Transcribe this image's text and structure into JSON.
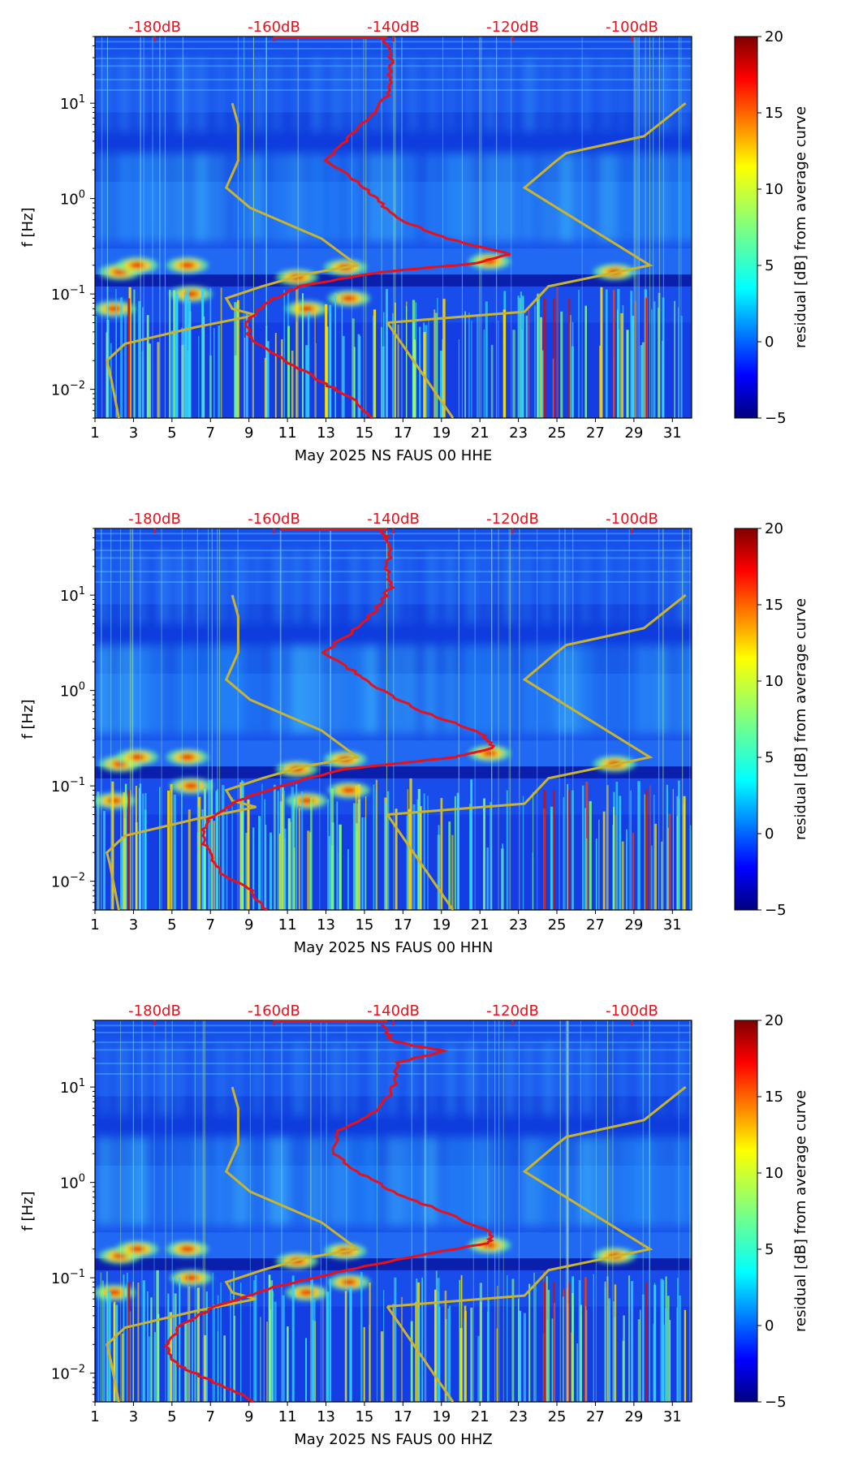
{
  "chart_data": [
    {
      "type": "heatmap",
      "channel": "HHE",
      "xlabel": "May 2025 NS FAUS 00 HHE",
      "ylabel": "f [Hz]",
      "xticks": [
        "1",
        "3",
        "5",
        "7",
        "9",
        "11",
        "13",
        "15",
        "17",
        "19",
        "21",
        "23",
        "25",
        "27",
        "29",
        "31"
      ],
      "xlim": [
        1,
        32
      ],
      "ylim": [
        0.005,
        50
      ],
      "yticks": [
        "10^-2",
        "10^-1",
        "10^0",
        "10^1"
      ],
      "top_axis_ticks": [
        "-180dB",
        "-160dB",
        "-140dB",
        "-120dB",
        "-100dB"
      ],
      "top_axis_range_db": [
        -190,
        -90
      ],
      "colorbar": {
        "label": "residual [dB] from average curve",
        "ticks": [
          "−5",
          "0",
          "5",
          "10",
          "15",
          "20"
        ],
        "range": [
          -5,
          20
        ]
      },
      "red_curve_db_vs_freq": [
        {
          "f": 0.005,
          "db": -143.5
        },
        {
          "f": 0.008,
          "db": -147
        },
        {
          "f": 0.012,
          "db": -152
        },
        {
          "f": 0.02,
          "db": -158
        },
        {
          "f": 0.035,
          "db": -164
        },
        {
          "f": 0.05,
          "db": -164.5
        },
        {
          "f": 0.08,
          "db": -161.5
        },
        {
          "f": 0.12,
          "db": -156
        },
        {
          "f": 0.17,
          "db": -142
        },
        {
          "f": 0.21,
          "db": -126
        },
        {
          "f": 0.26,
          "db": -120.5
        },
        {
          "f": 0.4,
          "db": -132
        },
        {
          "f": 0.6,
          "db": -139
        },
        {
          "f": 1.0,
          "db": -143
        },
        {
          "f": 1.5,
          "db": -146
        },
        {
          "f": 2.5,
          "db": -151
        },
        {
          "f": 4.0,
          "db": -148
        },
        {
          "f": 7.0,
          "db": -144
        },
        {
          "f": 12.0,
          "db": -141
        },
        {
          "f": 20.0,
          "db": -140.5
        },
        {
          "f": 35.0,
          "db": -140.5
        },
        {
          "f": 48.0,
          "db": -142
        }
      ],
      "red_top_segment_db": [
        -160,
        -141
      ],
      "model_curves_db_vs_freq": [
        [
          {
            "f": 0.005,
            "db": -186
          },
          {
            "f": 0.015,
            "db": -187.5
          },
          {
            "f": 0.02,
            "db": -188
          },
          {
            "f": 0.03,
            "db": -185
          },
          {
            "f": 0.045,
            "db": -173
          },
          {
            "f": 0.06,
            "db": -163
          },
          {
            "f": 0.07,
            "db": -167
          },
          {
            "f": 0.09,
            "db": -168
          },
          {
            "f": 0.12,
            "db": -162
          },
          {
            "f": 0.16,
            "db": -155
          },
          {
            "f": 0.2,
            "db": -146
          },
          {
            "f": 0.38,
            "db": -152
          },
          {
            "f": 0.8,
            "db": -164
          },
          {
            "f": 1.3,
            "db": -168
          },
          {
            "f": 2.5,
            "db": -166
          },
          {
            "f": 6.0,
            "db": -166
          },
          {
            "f": 10.0,
            "db": -167
          }
        ],
        [
          {
            "f": 0.05,
            "db": -141
          },
          {
            "f": 0.065,
            "db": -118
          },
          {
            "f": 0.12,
            "db": -114
          },
          {
            "f": 0.2,
            "db": -97
          },
          {
            "f": 1.3,
            "db": -118
          },
          {
            "f": 2.4,
            "db": -113
          },
          {
            "f": 3.0,
            "db": -111
          },
          {
            "f": 4.5,
            "db": -98
          },
          {
            "f": 10.0,
            "db": -91
          }
        ],
        [
          {
            "f": 0.005,
            "db": -130
          },
          {
            "f": 0.05,
            "db": -141
          }
        ]
      ]
    },
    {
      "type": "heatmap",
      "channel": "HHN",
      "xlabel": "May 2025 NS FAUS 00 HHN",
      "ylabel": "f [Hz]",
      "xticks": [
        "1",
        "3",
        "5",
        "7",
        "9",
        "11",
        "13",
        "15",
        "17",
        "19",
        "21",
        "23",
        "25",
        "27",
        "29",
        "31"
      ],
      "xlim": [
        1,
        32
      ],
      "ylim": [
        0.005,
        50
      ],
      "yticks": [
        "10^-2",
        "10^-1",
        "10^0",
        "10^1"
      ],
      "top_axis_ticks": [
        "-180dB",
        "-160dB",
        "-140dB",
        "-120dB",
        "-100dB"
      ],
      "top_axis_range_db": [
        -190,
        -90
      ],
      "colorbar": {
        "label": "residual [dB] from average curve",
        "ticks": [
          "−5",
          "0",
          "5",
          "10",
          "15",
          "20"
        ],
        "range": [
          -5,
          20
        ]
      },
      "red_curve_db_vs_freq": [
        {
          "f": 0.005,
          "db": -161.5
        },
        {
          "f": 0.008,
          "db": -164
        },
        {
          "f": 0.012,
          "db": -168.5
        },
        {
          "f": 0.02,
          "db": -171
        },
        {
          "f": 0.03,
          "db": -172
        },
        {
          "f": 0.045,
          "db": -171
        },
        {
          "f": 0.07,
          "db": -166
        },
        {
          "f": 0.1,
          "db": -159
        },
        {
          "f": 0.15,
          "db": -148
        },
        {
          "f": 0.2,
          "db": -130
        },
        {
          "f": 0.25,
          "db": -123
        },
        {
          "f": 0.35,
          "db": -125
        },
        {
          "f": 0.6,
          "db": -135
        },
        {
          "f": 1.0,
          "db": -142
        },
        {
          "f": 1.5,
          "db": -146
        },
        {
          "f": 2.5,
          "db": -152
        },
        {
          "f": 4.0,
          "db": -147
        },
        {
          "f": 7.0,
          "db": -143
        },
        {
          "f": 12.0,
          "db": -140.5
        },
        {
          "f": 20.0,
          "db": -141
        },
        {
          "f": 35.0,
          "db": -140.5
        },
        {
          "f": 48.0,
          "db": -142
        }
      ],
      "red_top_segment_db": [
        -159,
        -141
      ],
      "model_curves_db_vs_freq": [
        [
          {
            "f": 0.005,
            "db": -186
          },
          {
            "f": 0.015,
            "db": -187.5
          },
          {
            "f": 0.02,
            "db": -188
          },
          {
            "f": 0.03,
            "db": -185
          },
          {
            "f": 0.045,
            "db": -173
          },
          {
            "f": 0.06,
            "db": -163
          },
          {
            "f": 0.07,
            "db": -167
          },
          {
            "f": 0.09,
            "db": -168
          },
          {
            "f": 0.12,
            "db": -162
          },
          {
            "f": 0.16,
            "db": -155
          },
          {
            "f": 0.2,
            "db": -146
          },
          {
            "f": 0.38,
            "db": -152
          },
          {
            "f": 0.8,
            "db": -164
          },
          {
            "f": 1.3,
            "db": -168
          },
          {
            "f": 2.5,
            "db": -166
          },
          {
            "f": 6.0,
            "db": -166
          },
          {
            "f": 10.0,
            "db": -167
          }
        ],
        [
          {
            "f": 0.05,
            "db": -141
          },
          {
            "f": 0.065,
            "db": -118
          },
          {
            "f": 0.12,
            "db": -114
          },
          {
            "f": 0.2,
            "db": -97
          },
          {
            "f": 1.3,
            "db": -118
          },
          {
            "f": 2.4,
            "db": -113
          },
          {
            "f": 3.0,
            "db": -111
          },
          {
            "f": 4.5,
            "db": -98
          },
          {
            "f": 10.0,
            "db": -91
          }
        ],
        [
          {
            "f": 0.005,
            "db": -130
          },
          {
            "f": 0.05,
            "db": -141
          }
        ]
      ]
    },
    {
      "type": "heatmap",
      "channel": "HHZ",
      "xlabel": "May 2025 NS FAUS 00 HHZ",
      "ylabel": "f [Hz]",
      "xticks": [
        "1",
        "3",
        "5",
        "7",
        "9",
        "11",
        "13",
        "15",
        "17",
        "19",
        "21",
        "23",
        "25",
        "27",
        "29",
        "31"
      ],
      "xlim": [
        1,
        32
      ],
      "ylim": [
        0.005,
        50
      ],
      "yticks": [
        "10^-2",
        "10^-1",
        "10^0",
        "10^1"
      ],
      "top_axis_ticks": [
        "-180dB",
        "-160dB",
        "-140dB",
        "-120dB",
        "-100dB"
      ],
      "top_axis_range_db": [
        -190,
        -90
      ],
      "colorbar": {
        "label": "residual [dB] from average curve",
        "ticks": [
          "−5",
          "0",
          "5",
          "10",
          "15",
          "20"
        ],
        "range": [
          -5,
          20
        ]
      },
      "red_curve_db_vs_freq": [
        {
          "f": 0.005,
          "db": -163
        },
        {
          "f": 0.008,
          "db": -170
        },
        {
          "f": 0.012,
          "db": -176
        },
        {
          "f": 0.018,
          "db": -178
        },
        {
          "f": 0.03,
          "db": -176
        },
        {
          "f": 0.05,
          "db": -170
        },
        {
          "f": 0.08,
          "db": -160
        },
        {
          "f": 0.12,
          "db": -148
        },
        {
          "f": 0.18,
          "db": -134
        },
        {
          "f": 0.23,
          "db": -124
        },
        {
          "f": 0.3,
          "db": -123.5
        },
        {
          "f": 0.5,
          "db": -132
        },
        {
          "f": 0.8,
          "db": -140
        },
        {
          "f": 1.3,
          "db": -146
        },
        {
          "f": 2.0,
          "db": -150
        },
        {
          "f": 3.5,
          "db": -149
        },
        {
          "f": 6.0,
          "db": -142
        },
        {
          "f": 10.0,
          "db": -140
        },
        {
          "f": 18.0,
          "db": -139
        },
        {
          "f": 24.0,
          "db": -131.5
        },
        {
          "f": 30.0,
          "db": -140
        },
        {
          "f": 45.0,
          "db": -142
        }
      ],
      "red_top_segment_db": [
        -160,
        -141
      ],
      "model_curves_db_vs_freq": [
        [
          {
            "f": 0.005,
            "db": -186
          },
          {
            "f": 0.015,
            "db": -187.5
          },
          {
            "f": 0.02,
            "db": -188
          },
          {
            "f": 0.03,
            "db": -185
          },
          {
            "f": 0.045,
            "db": -173
          },
          {
            "f": 0.06,
            "db": -163
          },
          {
            "f": 0.07,
            "db": -167
          },
          {
            "f": 0.09,
            "db": -168
          },
          {
            "f": 0.12,
            "db": -162
          },
          {
            "f": 0.16,
            "db": -155
          },
          {
            "f": 0.2,
            "db": -146
          },
          {
            "f": 0.38,
            "db": -152
          },
          {
            "f": 0.8,
            "db": -164
          },
          {
            "f": 1.3,
            "db": -168
          },
          {
            "f": 2.5,
            "db": -166
          },
          {
            "f": 6.0,
            "db": -166
          },
          {
            "f": 10.0,
            "db": -167
          }
        ],
        [
          {
            "f": 0.05,
            "db": -141
          },
          {
            "f": 0.065,
            "db": -118
          },
          {
            "f": 0.12,
            "db": -114
          },
          {
            "f": 0.2,
            "db": -97
          },
          {
            "f": 1.3,
            "db": -118
          },
          {
            "f": 2.4,
            "db": -113
          },
          {
            "f": 3.0,
            "db": -111
          },
          {
            "f": 4.5,
            "db": -98
          },
          {
            "f": 10.0,
            "db": -91
          }
        ],
        [
          {
            "f": 0.005,
            "db": -130
          },
          {
            "f": 0.05,
            "db": -141
          }
        ]
      ]
    }
  ],
  "colors": {
    "red_curve": "#e8101a",
    "model_curve": "#c8b430",
    "top_tick_text": "#e8101a"
  }
}
